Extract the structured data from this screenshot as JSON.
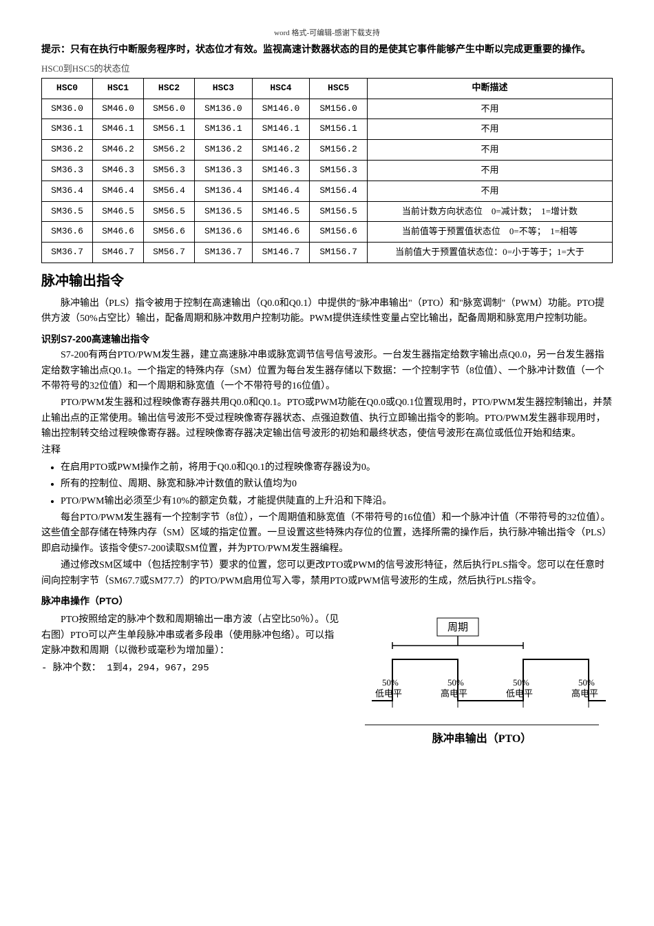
{
  "header": {
    "small": "word 格式-可编辑-感谢下载支持"
  },
  "tip": "提示：只有在执行中断服务程序时，状态位才有效。监视高速计数器状态的目的是使其它事件能够产生中断以完成更重要的操作。",
  "table_caption": "HSC0到HSC5的状态位",
  "hsc_table": {
    "headers": [
      "HSC0",
      "HSC1",
      "HSC2",
      "HSC3",
      "HSC4",
      "HSC5",
      "中断描述"
    ],
    "rows": [
      [
        "SM36.0",
        "SM46.0",
        "SM56.0",
        "SM136.0",
        "SM146.0",
        "SM156.0",
        "不用"
      ],
      [
        "SM36.1",
        "SM46.1",
        "SM56.1",
        "SM136.1",
        "SM146.1",
        "SM156.1",
        "不用"
      ],
      [
        "SM36.2",
        "SM46.2",
        "SM56.2",
        "SM136.2",
        "SM146.2",
        "SM156.2",
        "不用"
      ],
      [
        "SM36.3",
        "SM46.3",
        "SM56.3",
        "SM136.3",
        "SM146.3",
        "SM156.3",
        "不用"
      ],
      [
        "SM36.4",
        "SM46.4",
        "SM56.4",
        "SM136.4",
        "SM146.4",
        "SM156.4",
        "不用"
      ],
      [
        "SM36.5",
        "SM46.5",
        "SM56.5",
        "SM136.5",
        "SM146.5",
        "SM156.5",
        "当前计数方向状态位　0=减计数；　1=增计数"
      ],
      [
        "SM36.6",
        "SM46.6",
        "SM56.6",
        "SM136.6",
        "SM146.6",
        "SM156.6",
        "当前值等于预置值状态位　0=不等；　1=相等"
      ],
      [
        "SM36.7",
        "SM46.7",
        "SM56.7",
        "SM136.7",
        "SM146.7",
        "SM156.7",
        "当前值大于预置值状态位：0=小于等于；1=大于"
      ]
    ]
  },
  "section1": {
    "title": "脉冲输出指令",
    "p1": "脉冲输出（PLS）指令被用于控制在高速输出（Q0.0和Q0.1）中提供的\"脉冲串输出\"（PTO）和\"脉宽调制\"（PWM）功能。PTO提供方波（50%占空比）输出，配备周期和脉冲数用户控制功能。PWM提供连续性变量占空比输出，配备周期和脉宽用户控制功能。"
  },
  "sub1": {
    "title": "识别S7-200高速输出指令",
    "p1": "S7-200有两台PTO/PWM发生器，建立高速脉冲串或脉宽调节信号信号波形。一台发生器指定给数字输出点Q0.0，另一台发生器指定给数字输出点Q0.1。一个指定的特殊内存（SM）位置为每台发生器存储以下数据：一个控制字节（8位值）、一个脉冲计数值（一个不带符号的32位值）和一个周期和脉宽值（一个不带符号的16位值）。",
    "p2": "PTO/PWM发生器和过程映像寄存器共用Q0.0和Q0.1。PTO或PWM功能在Q0.0或Q0.1位置现用时，PTO/PWM发生器控制输出，并禁止输出点的正常使用。输出信号波形不受过程映像寄存器状态、点强迫数值、执行立即输出指令的影响。PTO/PWM发生器非现用时，输出控制转交给过程映像寄存器。过程映像寄存器决定输出信号波形的初始和最终状态，使信号波形在高位或低位开始和结束。"
  },
  "notes_label": "注释",
  "notes": [
    "在启用PTO或PWM操作之前，将用于Q0.0和Q0.1的过程映像寄存器设为0。",
    "所有的控制位、周期、脉宽和脉冲计数值的默认值均为0",
    "PTO/PWM输出必须至少有10%的额定负载，才能提供陡直的上升沿和下降沿。"
  ],
  "p_after_notes1": "每台PTO/PWM发生器有一个控制字节（8位），一个周期值和脉宽值（不带符号的16位值）和一个脉冲计值（不带符号的32位值）。这些值全部存储在特殊内存（SM）区域的指定位置。一旦设置这些特殊内存位的位置，选择所需的操作后，执行脉冲输出指令（PLS）即启动操作。该指令使S7-200读取SM位置，并为PTO/PWM发生器编程。",
  "p_after_notes2": "通过修改SM区域中（包括控制字节）要求的位置，您可以更改PTO或PWM的信号波形特征，然后执行PLS指令。您可以在任意时间向控制字节（SM67.7或SM77.7）的PTO/PWM启用位写入零，禁用PTO或PWM信号波形的生成，然后执行PLS指令。",
  "sub2": {
    "title": "脉冲串操作（PTO）",
    "p1": "PTO按照给定的脉冲个数和周期输出一串方波（占空比50％）。（见右图）PTO可以产生单段脉冲串或者多段串（使用脉冲包络）。可以指定脉冲数和周期（以微秒或毫秒为增加量）：",
    "bullet": "- 脉冲个数： 1到4，294，967，295"
  },
  "diagram": {
    "period_label": "周期",
    "low": "低电平",
    "high": "高电平",
    "pct": "50%",
    "footer": "脉冲串输出（PTO）",
    "colors": {
      "line": "#000000",
      "bg": "#ffffff",
      "text": "#000000"
    }
  }
}
